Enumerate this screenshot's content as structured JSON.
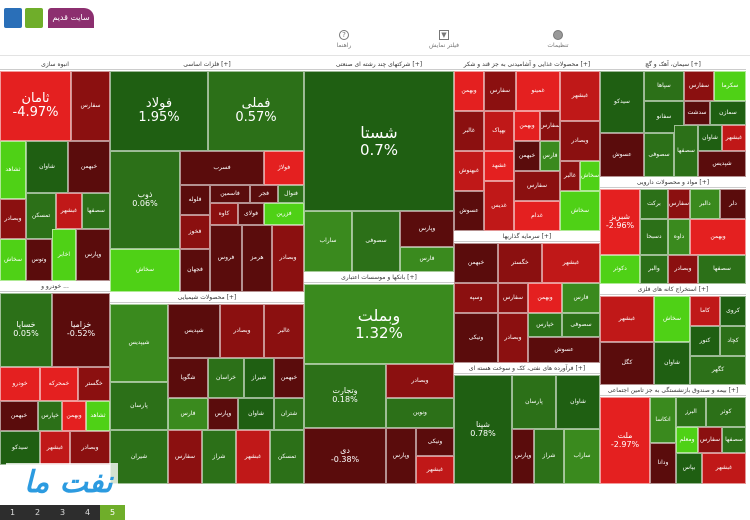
{
  "topbar": {
    "old_site_label": "سایت قدیم",
    "tools": [
      {
        "label": "راهنما",
        "icon": "help-icon"
      },
      {
        "label": "فیلتر نمایش",
        "icon": "filter-icon"
      },
      {
        "label": "تنظیمات",
        "icon": "gear-icon"
      }
    ]
  },
  "colors": {
    "deep_red": "#8b1010",
    "red": "#e42020",
    "dark_green": "#1f5f12",
    "green": "#3a8a1e",
    "bright_green": "#4fd116",
    "dark_red": "#5a0c0c"
  },
  "sectors": [
    {
      "key": "s0",
      "title": "انبوه سازی"
    },
    {
      "key": "s1",
      "title": "فلزات اساسی [+]"
    },
    {
      "key": "s2",
      "title": "شرکتهای چند رشته ای صنعتی [+]"
    },
    {
      "key": "s3",
      "title": "محصولات غذایی و آشامیدنی به جز قند و شکر [+]"
    },
    {
      "key": "s4",
      "title": "سیمان، آهک و گچ [+]"
    },
    {
      "key": "s5",
      "title": "خودرو و ..."
    },
    {
      "key": "s6",
      "title": "محصولات شیمیایی [+]"
    },
    {
      "key": "s7",
      "title": "بانکها و موسسات اعتباری [+]"
    },
    {
      "key": "s8",
      "title": "سرمایه گذاریها [+]"
    },
    {
      "key": "s9",
      "title": "فرآورده های نفتی، کک و سوخت هسته ای [+]"
    },
    {
      "key": "s10",
      "title": "مواد و محصولات دارویی [+]"
    },
    {
      "key": "s11",
      "title": "استخراج کانه های فلزی [+]"
    },
    {
      "key": "s12",
      "title": "بیمه و صندوق بازنشستگی به جز تامین اجتماعی [+]"
    }
  ],
  "tiles": [
    {
      "name": "ثامان",
      "pct": "-4.97%",
      "color": "#e42020"
    },
    {
      "name": "فولاد",
      "pct": "1.95%",
      "color": "#1f5f12"
    },
    {
      "name": "فملی",
      "pct": "0.57%",
      "color": "#2c7018"
    },
    {
      "name": "ذوب",
      "pct": "0.06%",
      "color": "#2c7018"
    },
    {
      "name": "شستا",
      "pct": "0.7%",
      "color": "#1f5f12"
    },
    {
      "name": "وبملت",
      "pct": "1.32%",
      "color": "#3a8a1e"
    },
    {
      "name": "شپنا",
      "pct": "0.78%",
      "color": "#1f5f12"
    },
    {
      "name": "خساپا",
      "pct": "0.05%",
      "color": "#2c7018"
    },
    {
      "name": "خزامیا",
      "pct": "-0.52%",
      "color": "#5a0c0c"
    },
    {
      "name": "وتجارت",
      "pct": "0.18%",
      "color": "#2c7018"
    },
    {
      "name": "دی",
      "pct": "-0.38%",
      "color": "#5a0c0c"
    },
    {
      "name": "ملت",
      "pct": "-2.97%",
      "color": "#e42020"
    },
    {
      "name": "شبریز",
      "pct": "-2.96%",
      "color": "#e42020"
    },
    {
      "name": "غبشهر",
      "pct": "",
      "color": "#c01818"
    },
    {
      "name": "سفارس",
      "pct": "",
      "color": "#8b1010"
    },
    {
      "name": "سخاش",
      "pct": "",
      "color": "#4fd116"
    },
    {
      "name": "ونوین",
      "pct": "",
      "color": "#2c7018"
    },
    {
      "name": "وپارس",
      "pct": "",
      "color": "#5a0c0c"
    },
    {
      "name": "شراز",
      "pct": "",
      "color": "#2c7018"
    },
    {
      "name": "شاوان",
      "pct": "",
      "color": "#1f5f12"
    },
    {
      "name": "فارس",
      "pct": "",
      "color": "#3a8a1e"
    },
    {
      "name": "پارسان",
      "pct": "",
      "color": "#2c7018"
    },
    {
      "name": "شیران",
      "pct": "",
      "color": "#2c7018"
    },
    {
      "name": "شپدیس",
      "pct": "",
      "color": "#5a0c0c"
    },
    {
      "name": "شگویا",
      "pct": "",
      "color": "#5a0c0c"
    },
    {
      "name": "خراسان",
      "pct": "",
      "color": "#2c7018"
    },
    {
      "name": "شیراز",
      "pct": "",
      "color": "#1f5f12"
    },
    {
      "name": "وبصادر",
      "pct": "",
      "color": "#8b1010"
    },
    {
      "name": "وسپه",
      "pct": "",
      "color": "#8b1010"
    },
    {
      "name": "ونیکی",
      "pct": "",
      "color": "#5a0c0c"
    },
    {
      "name": "وبهمن",
      "pct": "",
      "color": "#e42020"
    },
    {
      "name": "بهپاک",
      "pct": "",
      "color": "#c01818"
    },
    {
      "name": "غدام",
      "pct": "",
      "color": "#e42020"
    },
    {
      "name": "غمینو",
      "pct": "",
      "color": "#e42020"
    },
    {
      "name": "غبهنوش",
      "pct": "",
      "color": "#c01818"
    },
    {
      "name": "غشهد",
      "pct": "",
      "color": "#e42020"
    },
    {
      "name": "غدیس",
      "pct": "",
      "color": "#c01818"
    },
    {
      "name": "عسوش",
      "pct": "",
      "color": "#5a0c0c"
    },
    {
      "name": "غالبر",
      "pct": "",
      "color": "#8b1010"
    },
    {
      "name": "سفانو",
      "pct": "",
      "color": "#1f5f12"
    },
    {
      "name": "ساراب",
      "pct": "",
      "color": "#3a8a1e"
    },
    {
      "name": "سصفها",
      "pct": "",
      "color": "#2c7018"
    },
    {
      "name": "سیدکو",
      "pct": "",
      "color": "#1f5f12"
    },
    {
      "name": "سکرما",
      "pct": "",
      "color": "#4fd116"
    },
    {
      "name": "سپاها",
      "pct": "",
      "color": "#2c7018"
    },
    {
      "name": "سدشت",
      "pct": "",
      "color": "#5a0c0c"
    },
    {
      "name": "سمازن",
      "pct": "",
      "color": "#1f5f12"
    },
    {
      "name": "سصوفی",
      "pct": "",
      "color": "#2c7018"
    },
    {
      "name": "برکت",
      "pct": "",
      "color": "#2c7018"
    },
    {
      "name": "دالبر",
      "pct": "",
      "color": "#3a8a1e"
    },
    {
      "name": "دکوثر",
      "pct": "",
      "color": "#4fd116"
    },
    {
      "name": "دلر",
      "pct": "",
      "color": "#5a0c0c"
    },
    {
      "name": "داوه",
      "pct": "",
      "color": "#3a8a1e"
    },
    {
      "name": "دسبحا",
      "pct": "",
      "color": "#2c7018"
    },
    {
      "name": "والبر",
      "pct": "",
      "color": "#2c7018"
    },
    {
      "name": "کچاد",
      "pct": "",
      "color": "#2c7018"
    },
    {
      "name": "کگل",
      "pct": "",
      "color": "#5a0c0c"
    },
    {
      "name": "کنور",
      "pct": "",
      "color": "#1f5f12"
    },
    {
      "name": "کگهر",
      "pct": "",
      "color": "#2c7018"
    },
    {
      "name": "کاما",
      "pct": "",
      "color": "#c01818"
    },
    {
      "name": "کروی",
      "pct": "",
      "color": "#1f5f12"
    },
    {
      "name": "بپاس",
      "pct": "",
      "color": "#1f5f12"
    },
    {
      "name": "البرز",
      "pct": "",
      "color": "#2c7018"
    },
    {
      "name": "ودانا",
      "pct": "",
      "color": "#5a0c0c"
    },
    {
      "name": "کوثر",
      "pct": "",
      "color": "#2c7018"
    },
    {
      "name": "اتکاسا",
      "pct": "",
      "color": "#3a8a1e"
    },
    {
      "name": "ومعلم",
      "pct": "",
      "color": "#4fd116"
    },
    {
      "name": "خودرو",
      "pct": "",
      "color": "#e42020"
    },
    {
      "name": "خپارس",
      "pct": "",
      "color": "#2c7018"
    },
    {
      "name": "خمحرکه",
      "pct": "",
      "color": "#e42020"
    },
    {
      "name": "خگستر",
      "pct": "",
      "color": "#8b1010"
    },
    {
      "name": "خبهمن",
      "pct": "",
      "color": "#5a0c0c"
    },
    {
      "name": "ثشاهد",
      "pct": "",
      "color": "#4fd116"
    },
    {
      "name": "تمسکن",
      "pct": "",
      "color": "#2c7018"
    },
    {
      "name": "وتوس",
      "pct": "",
      "color": "#5a0c0c"
    },
    {
      "name": "اخابر",
      "pct": "",
      "color": "#4fd116"
    },
    {
      "name": "فسرب",
      "pct": "",
      "color": "#5a0c0c"
    },
    {
      "name": "فخوز",
      "pct": "",
      "color": "#8b1010"
    },
    {
      "name": "فولاژ",
      "pct": "",
      "color": "#e42020"
    },
    {
      "name": "فاسمین",
      "pct": "",
      "color": "#5a0c0c"
    },
    {
      "name": "فنوال",
      "pct": "",
      "color": "#2c7018"
    },
    {
      "name": "فلوله",
      "pct": "",
      "color": "#5a0c0c"
    },
    {
      "name": "فروس",
      "pct": "",
      "color": "#5a0c0c"
    },
    {
      "name": "فجر",
      "pct": "",
      "color": "#5a0c0c"
    },
    {
      "name": "فزرین",
      "pct": "",
      "color": "#4fd116"
    },
    {
      "name": "کاوه",
      "pct": "",
      "color": "#8b1010"
    },
    {
      "name": "فولای",
      "pct": "",
      "color": "#5a0c0c"
    },
    {
      "name": "هرمز",
      "pct": "",
      "color": "#5a0c0c"
    },
    {
      "name": "فجهان",
      "pct": "",
      "color": "#5a0c0c"
    },
    {
      "name": "ونفت",
      "pct": "",
      "color": "#1f5f12"
    },
    {
      "name": "شیپدیس",
      "pct": "",
      "color": "#3a8a1e"
    },
    {
      "name": "شتران",
      "pct": "",
      "color": "#2c7018"
    }
  ],
  "logo": {
    "text": "نفت ما"
  },
  "pager": [
    "1",
    "2",
    "3",
    "4",
    "5"
  ]
}
